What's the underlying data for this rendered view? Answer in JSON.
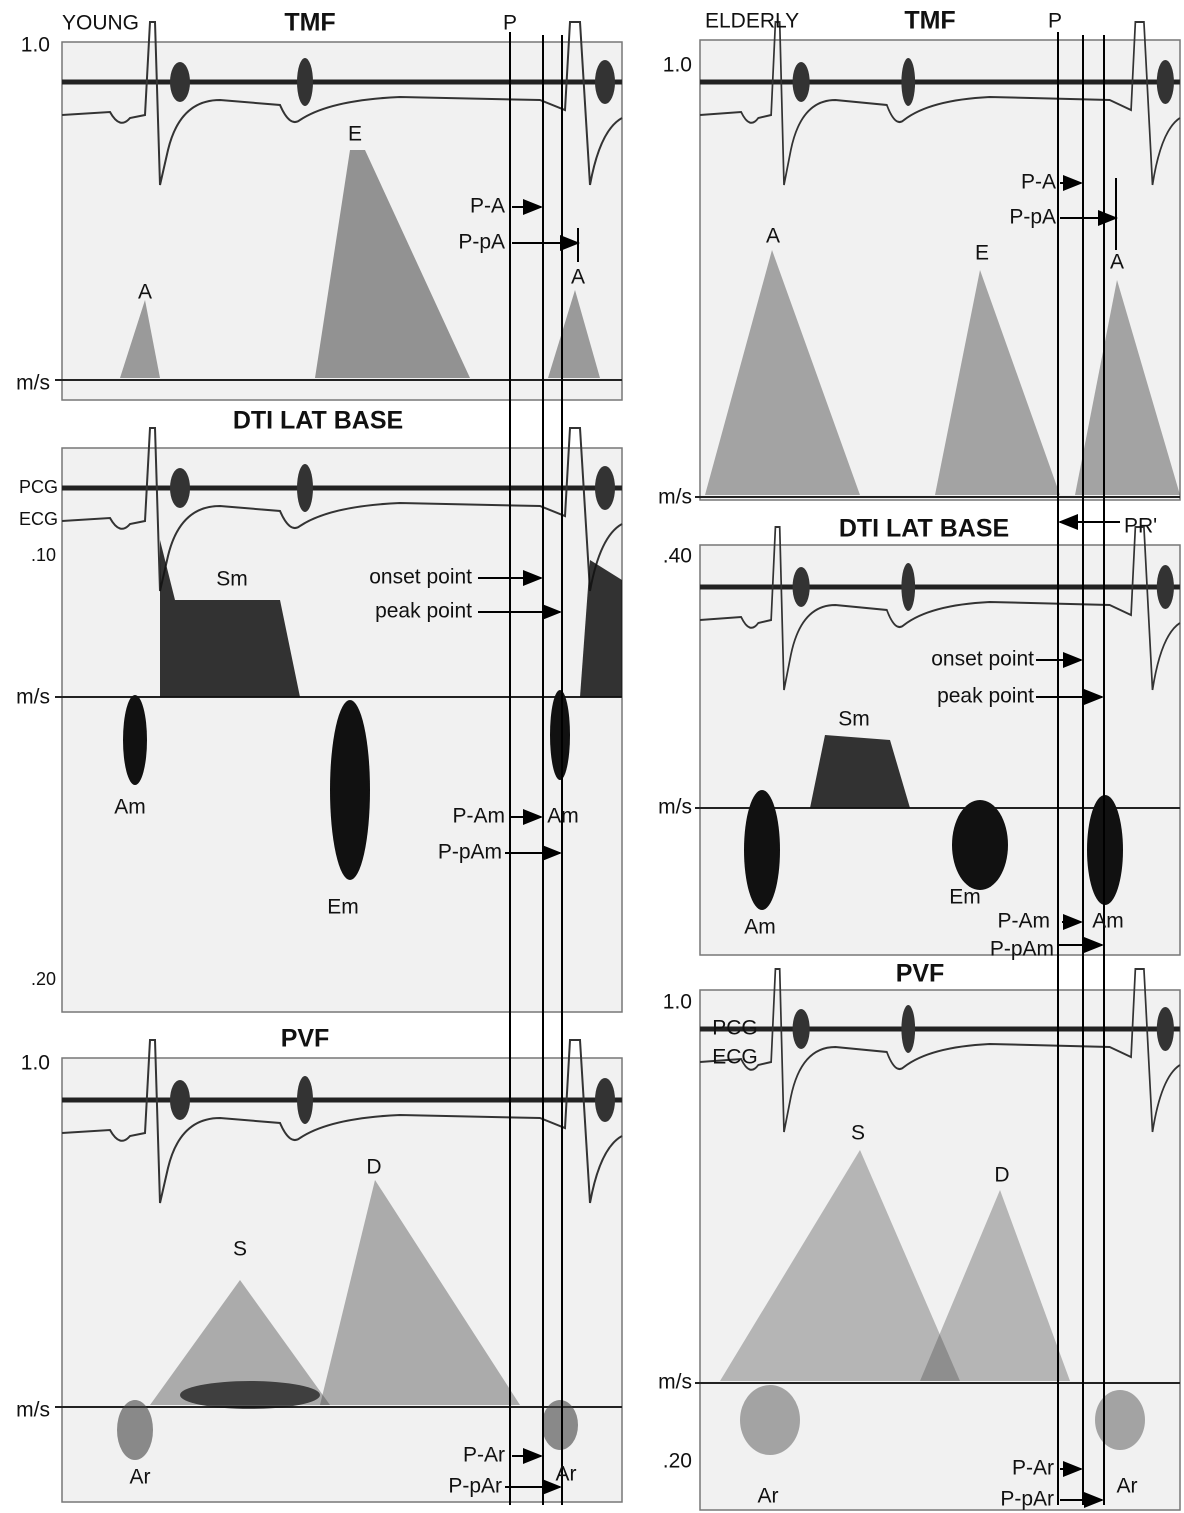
{
  "young": {
    "group": "YOUNG",
    "p": "P",
    "tmf": {
      "title": "TMF",
      "scale_top": "1.0",
      "unit": "m/s",
      "e": "E",
      "a": "A",
      "a_next": "A",
      "p_a": "P-A",
      "p_pa": "P-pA"
    },
    "dti": {
      "title": "DTI LAT BASE",
      "pcg": "PCG",
      "ecg": "ECG",
      "scale_top": ".10",
      "unit": "m/s",
      "scale_bottom": ".20",
      "sm": "Sm",
      "am": "Am",
      "em": "Em",
      "am_next": "Am",
      "onset": "onset point",
      "peak": "peak point",
      "p_am": "P-Am",
      "p_pam": "P-pAm"
    },
    "pvf": {
      "title": "PVF",
      "scale_top": "1.0",
      "unit": "m/s",
      "s": "S",
      "d": "D",
      "ar": "Ar",
      "ar_next": "Ar",
      "p_ar": "P-Ar",
      "p_par": "P-pAr"
    }
  },
  "elderly": {
    "group": "ELDERLY",
    "p": "P",
    "pr": "PR'",
    "tmf": {
      "title": "TMF",
      "scale_top": "1.0",
      "unit": "m/s",
      "a": "A",
      "e": "E",
      "a_next": "A",
      "p_a": "P-A",
      "p_pa": "P-pA"
    },
    "dti": {
      "title": "DTI LAT BASE",
      "scale_top": ".40",
      "unit": "m/s",
      "sm": "Sm",
      "am": "Am",
      "em": "Em",
      "am_next": "Am",
      "onset": "onset point",
      "peak": "peak point",
      "p_am": "P-Am",
      "p_pam": "P-pAm"
    },
    "pvf": {
      "title": "PVF",
      "scale_top": "1.0",
      "pcg": "PCG",
      "ecg": "ECG",
      "unit": "m/s",
      "scale_bottom": ".20",
      "s": "S",
      "d": "D",
      "ar": "Ar",
      "ar_next": "Ar",
      "p_ar": "P-Ar",
      "p_par": "P-pAr"
    }
  }
}
